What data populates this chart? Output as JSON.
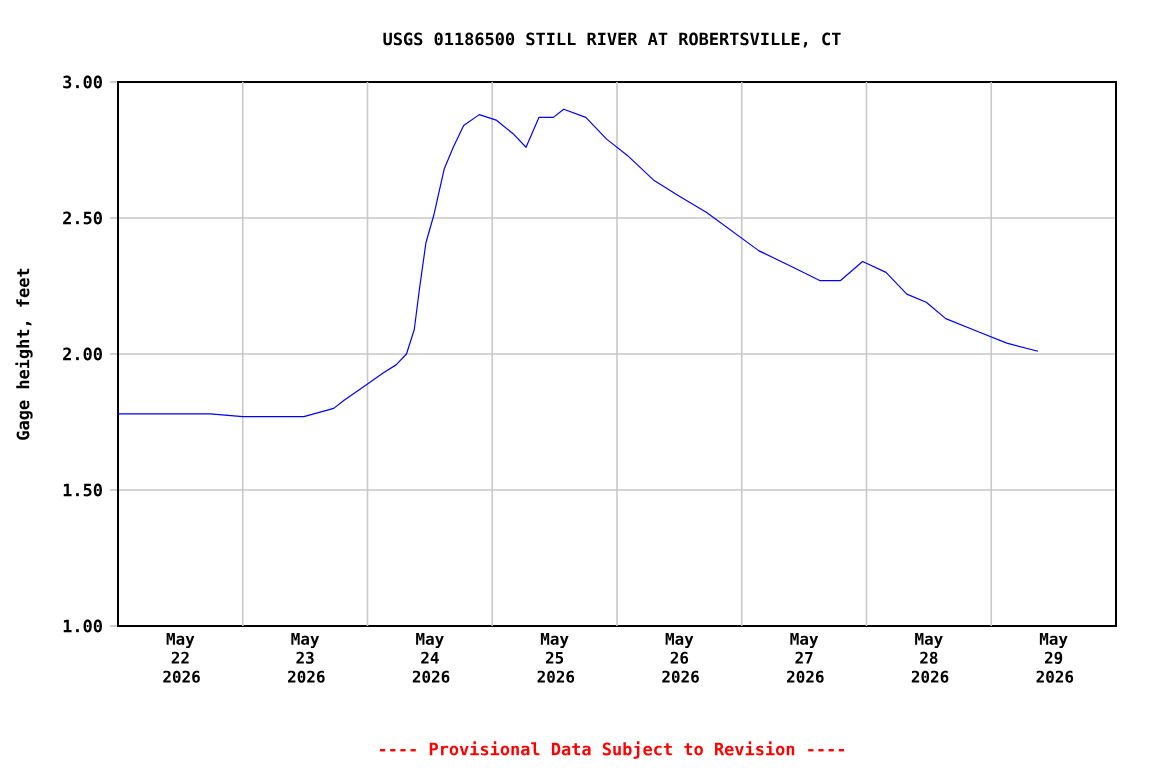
{
  "chart_data": {
    "type": "line",
    "title": "USGS 01186500 STILL RIVER AT ROBERTSVILLE, CT",
    "ylabel": "Gage height, feet",
    "annotations": [
      "---- Provisional Data Subject to Revision ----"
    ],
    "x": [
      "2026-05-22T00:00",
      "2026-05-22T17:45",
      "2026-05-23T00:00",
      "2026-05-23T11:45",
      "2026-05-23T17:30",
      "2026-05-23T19:30",
      "2026-05-23T23:15",
      "2026-05-24T03:00",
      "2026-05-24T05:30",
      "2026-05-24T07:30",
      "2026-05-24T09:00",
      "2026-05-24T10:00",
      "2026-05-24T11:15",
      "2026-05-24T12:45",
      "2026-05-24T14:45",
      "2026-05-24T16:30",
      "2026-05-24T18:30",
      "2026-05-24T21:30",
      "2026-05-25T00:45",
      "2026-05-25T04:00",
      "2026-05-25T06:30",
      "2026-05-25T09:00",
      "2026-05-25T11:45",
      "2026-05-25T13:45",
      "2026-05-25T18:00",
      "2026-05-25T22:00",
      "2026-05-26T02:00",
      "2026-05-26T07:00",
      "2026-05-26T12:00",
      "2026-05-26T17:15",
      "2026-05-26T22:15",
      "2026-05-27T03:15",
      "2026-05-27T09:45",
      "2026-05-27T15:00",
      "2026-05-27T19:00",
      "2026-05-27T23:15",
      "2026-05-28T03:45",
      "2026-05-28T07:45",
      "2026-05-28T11:30",
      "2026-05-28T15:15",
      "2026-05-28T21:45",
      "2026-05-29T03:00",
      "2026-05-29T09:00"
    ],
    "series": [
      {
        "color": "#0000ff",
        "values": [
          1.78,
          1.78,
          1.77,
          1.77,
          1.8,
          1.83,
          1.88,
          1.93,
          1.96,
          2.0,
          2.09,
          2.24,
          2.41,
          2.51,
          2.68,
          2.76,
          2.84,
          2.88,
          2.86,
          2.81,
          2.76,
          2.87,
          2.87,
          2.9,
          2.87,
          2.79,
          2.73,
          2.64,
          2.58,
          2.52,
          2.45,
          2.38,
          2.32,
          2.27,
          2.27,
          2.34,
          2.3,
          2.22,
          2.19,
          2.13,
          2.08,
          2.04,
          2.01
        ]
      }
    ],
    "xlim": [
      "2026-05-22T00:00",
      "2026-05-30T00:00"
    ],
    "xticks": [
      {
        "value": "2026-05-22T12:00",
        "label": "May 22 2026"
      },
      {
        "value": "2026-05-23T00:00",
        "label": null
      },
      {
        "value": "2026-05-23T12:00",
        "label": "May 23 2026"
      },
      {
        "value": "2026-05-24T00:00",
        "label": null
      },
      {
        "value": "2026-05-24T12:00",
        "label": "May 24 2026"
      },
      {
        "value": "2026-05-25T00:00",
        "label": null
      },
      {
        "value": "2026-05-25T12:00",
        "label": "May 25 2026"
      },
      {
        "value": "2026-05-26T00:00",
        "label": null
      },
      {
        "value": "2026-05-26T12:00",
        "label": "May 26 2026"
      },
      {
        "value": "2026-05-27T00:00",
        "label": null
      },
      {
        "value": "2026-05-27T12:00",
        "label": "May 27 2026"
      },
      {
        "value": "2026-05-28T00:00",
        "label": null
      },
      {
        "value": "2026-05-28T12:00",
        "label": "May 28 2026"
      },
      {
        "value": "2026-05-29T00:00",
        "label": null
      },
      {
        "value": "2026-05-29T12:00",
        "label": "May 29 2026"
      }
    ],
    "ylim": [
      1.0,
      3.0
    ],
    "yticks": [
      {
        "value": 1.0,
        "label": "1.00"
      },
      {
        "value": 1.5,
        "label": "1.50"
      },
      {
        "value": 2.0,
        "label": "2.00"
      },
      {
        "value": 2.5,
        "label": "2.50"
      },
      {
        "value": 3.0,
        "label": "3.00"
      }
    ],
    "grid": true,
    "marker": "none",
    "line_style": "solid"
  }
}
